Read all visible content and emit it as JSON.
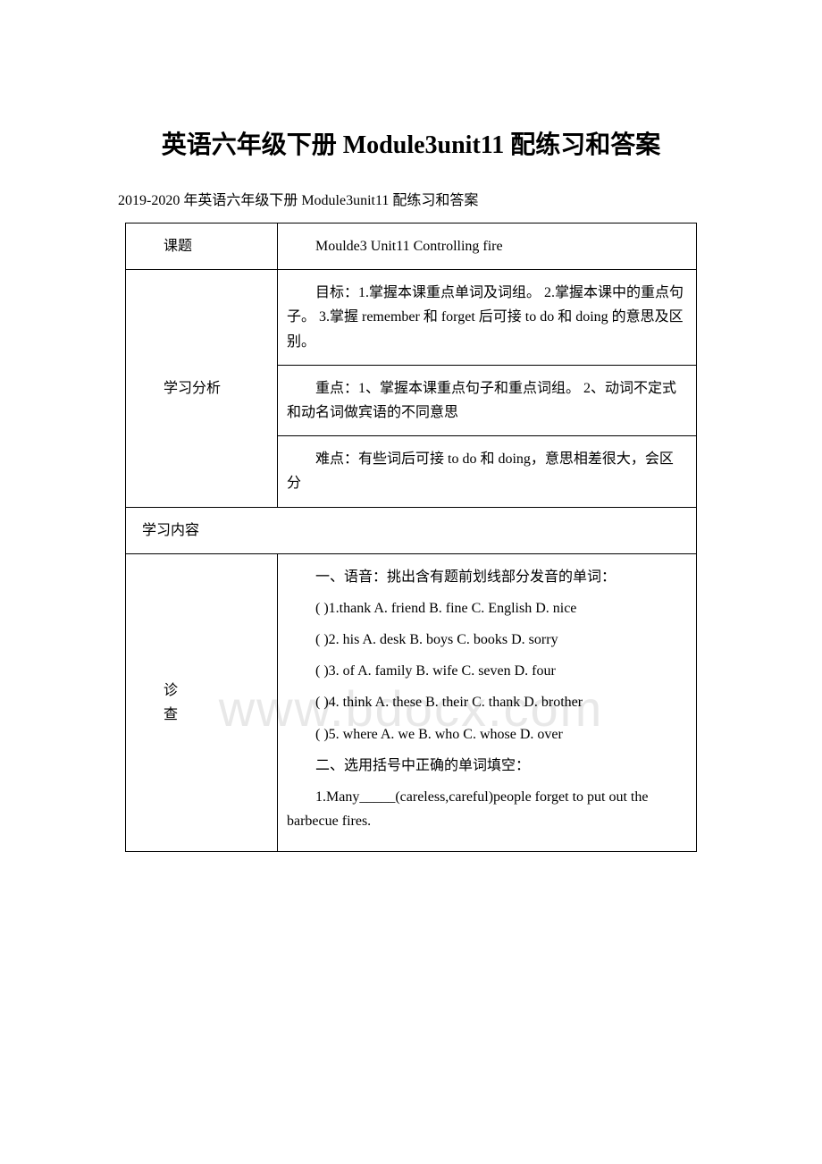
{
  "header": {
    "title": "英语六年级下册 Module3unit11 配练习和答案",
    "subtitle": "2019-2020 年英语六年级下册 Module3unit11 配练习和答案"
  },
  "watermark": "www.bdocx.com",
  "table": {
    "row1": {
      "label": "课题",
      "content": "Moulde3 Unit11 Controlling fire"
    },
    "row2": {
      "label": "学习分析",
      "goals": "目标：1.掌握本课重点单词及词组。 2.掌握本课中的重点句子。 3.掌握 remember 和 forget 后可接 to do 和 doing 的意思及区别。",
      "key_points": "重点：1、掌握本课重点句子和重点词组。 2、动词不定式和动名词做宾语的不同意思",
      "difficult_points": "难点：有些词后可接 to do 和 doing，意思相差很大，会区分"
    },
    "row3": {
      "label": "学习内容"
    },
    "row4": {
      "label_line1": "诊",
      "label_line2": "查",
      "section1_title": "一、语音：挑出含有题前划线部分发音的单词：",
      "q1": "( )1.thank A. friend    B. fine    C. English  D. nice",
      "q2": "( )2. his  A. desk    B. boys    C. books    D. sorry",
      "q3": "( )3. of    A. family    B. wife    C. seven    D. four",
      "q4": "( )4. think A. these    B. their  C. thank    D. brother",
      "q5": "( )5. where A. we        B. who    C. whose    D. over",
      "section2_title": "二、选用括号中正确的单词填空：",
      "s2q1": "1.Many_____(careless,careful)people forget to put out the barbecue fires."
    }
  }
}
